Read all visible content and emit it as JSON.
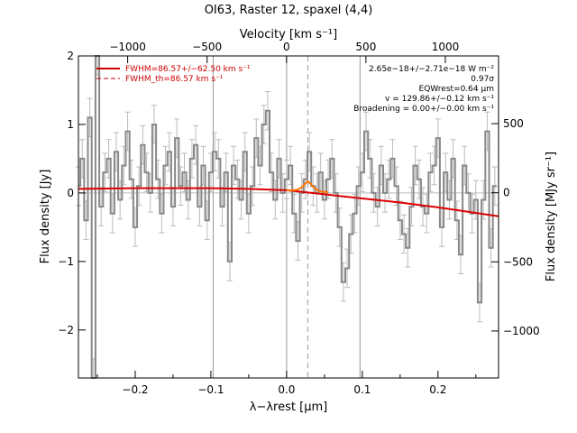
{
  "chart_data": {
    "type": "line",
    "title": "OI63, Raster 12, spaxel (4,4)",
    "xlabel": "λ−λrest [µm]",
    "ylabel": "Flux density [Jy]",
    "top_axis_label": "Velocity [km s⁻¹]",
    "right_axis_label": "Flux density [MJy sr⁻¹]",
    "xlim": [
      -0.275,
      0.28
    ],
    "ylim": [
      -2.7,
      2.0
    ],
    "top_xlim": [
      -1310,
      1335
    ],
    "right_ylim": [
      -1340,
      990
    ],
    "x_ticks": [
      -0.2,
      -0.1,
      0.0,
      0.1,
      0.2
    ],
    "x_tick_labels": [
      "−0.2",
      "−0.1",
      "0.0",
      "0.1",
      "0.2"
    ],
    "y_ticks": [
      -2,
      -1,
      0,
      1,
      2
    ],
    "y_tick_labels": [
      "−2",
      "−1",
      "0",
      "1",
      "2"
    ],
    "top_ticks": [
      -1000,
      -500,
      0,
      500,
      1000
    ],
    "top_tick_labels": [
      "−1000",
      "−500",
      "0",
      "500",
      "1000"
    ],
    "right_ticks": [
      -1000,
      -500,
      0,
      500
    ],
    "right_tick_labels": [
      "−1000",
      "−500",
      "0",
      "500"
    ],
    "vertical_lines": [
      -0.097,
      0.0,
      0.097
    ],
    "dashed_line": 0.028,
    "legend": [
      {
        "label": "FWHM=86.57+/−62.50 km s⁻¹",
        "style": "solid"
      },
      {
        "label": "FWHM_th=86.57 km s⁻¹",
        "style": "dashed"
      }
    ],
    "annotations": [
      "2.65e−18+/−2.71e−18 W m⁻²",
      "0.97σ",
      "EQWrest=0.64 µm",
      "v = 129.86+/−0.12 km s⁻¹",
      "Broadening = 0.00+/−0.00 km s⁻¹"
    ],
    "series": [
      {
        "style": "steps",
        "x": [
          -0.275,
          -0.27,
          -0.265,
          -0.26,
          -0.255,
          -0.25,
          -0.245,
          -0.24,
          -0.235,
          -0.23,
          -0.225,
          -0.22,
          -0.215,
          -0.21,
          -0.205,
          -0.2,
          -0.195,
          -0.19,
          -0.185,
          -0.18,
          -0.175,
          -0.17,
          -0.165,
          -0.16,
          -0.155,
          -0.15,
          -0.145,
          -0.14,
          -0.135,
          -0.13,
          -0.125,
          -0.12,
          -0.115,
          -0.11,
          -0.105,
          -0.1,
          -0.095,
          -0.09,
          -0.085,
          -0.08,
          -0.075,
          -0.07,
          -0.065,
          -0.06,
          -0.055,
          -0.05,
          -0.045,
          -0.04,
          -0.035,
          -0.03,
          -0.025,
          -0.02,
          -0.015,
          -0.01,
          -0.005,
          0.0,
          0.005,
          0.01,
          0.015,
          0.02,
          0.025,
          0.03,
          0.035,
          0.04,
          0.045,
          0.05,
          0.055,
          0.06,
          0.065,
          0.07,
          0.075,
          0.08,
          0.085,
          0.09,
          0.095,
          0.1,
          0.105,
          0.11,
          0.115,
          0.12,
          0.125,
          0.13,
          0.135,
          0.14,
          0.145,
          0.15,
          0.155,
          0.16,
          0.165,
          0.17,
          0.175,
          0.18,
          0.185,
          0.19,
          0.195,
          0.2,
          0.205,
          0.21,
          0.215,
          0.22,
          0.225,
          0.23,
          0.235,
          0.24,
          0.245,
          0.25,
          0.255,
          0.26,
          0.265,
          0.27,
          0.275
        ],
        "y": [
          0.1,
          0.5,
          -0.4,
          1.1,
          -2.7,
          2.0,
          -0.2,
          0.3,
          0.5,
          -0.3,
          0.6,
          -0.1,
          0.4,
          0.9,
          0.2,
          -0.5,
          0.1,
          0.7,
          0.3,
          0.0,
          1.0,
          0.2,
          -0.3,
          0.4,
          0.6,
          -0.2,
          0.8,
          0.1,
          0.3,
          -0.1,
          0.5,
          0.7,
          -0.2,
          0.4,
          -0.4,
          0.3,
          0.6,
          0.5,
          -0.2,
          0.3,
          -1.0,
          0.4,
          0.2,
          -0.1,
          0.6,
          -0.3,
          0.1,
          0.8,
          0.4,
          1.0,
          1.2,
          0.3,
          -0.1,
          0.5,
          0.0,
          0.2,
          0.4,
          -0.3,
          -0.7,
          0.0,
          0.2,
          0.6,
          0.1,
          0.0,
          0.3,
          -0.1,
          0.2,
          0.5,
          0.0,
          -0.5,
          -1.3,
          -1.1,
          -0.6,
          -0.3,
          0.1,
          0.3,
          0.9,
          0.5,
          0.0,
          -0.2,
          0.4,
          0.0,
          0.2,
          0.5,
          0.1,
          -0.4,
          -0.6,
          -0.8,
          -0.2,
          0.4,
          0.2,
          -0.2,
          -0.3,
          0.3,
          0.4,
          0.8,
          -0.5,
          0.3,
          -0.1,
          0.5,
          -0.4,
          -0.9,
          0.4,
          0.0,
          -0.3,
          -0.1,
          -1.6,
          -0.1,
          0.9,
          -0.8,
          0.1
        ],
        "yerr": 0.28,
        "color": "#888888"
      },
      {
        "name": "FWHM=86.57+/−62.50 km s⁻¹",
        "style": "line",
        "x": [
          -0.275,
          -0.2,
          -0.15,
          -0.1,
          -0.05,
          0.0,
          0.05,
          0.1,
          0.15,
          0.2,
          0.28
        ],
        "y": [
          0.06,
          0.07,
          0.07,
          0.07,
          0.06,
          0.04,
          -0.02,
          -0.08,
          -0.14,
          -0.21,
          -0.34
        ],
        "color": "#dd0000"
      },
      {
        "name": "FWHM_th=86.57 km s⁻¹",
        "style": "gaussian",
        "x": [
          0.0,
          0.01,
          0.015,
          0.02,
          0.024,
          0.028,
          0.032,
          0.036,
          0.041,
          0.046,
          0.055
        ],
        "y": [
          0.04,
          0.04,
          0.05,
          0.08,
          0.13,
          0.17,
          0.13,
          0.08,
          0.04,
          0.02,
          0.01
        ],
        "color": "#ff7700"
      }
    ]
  }
}
